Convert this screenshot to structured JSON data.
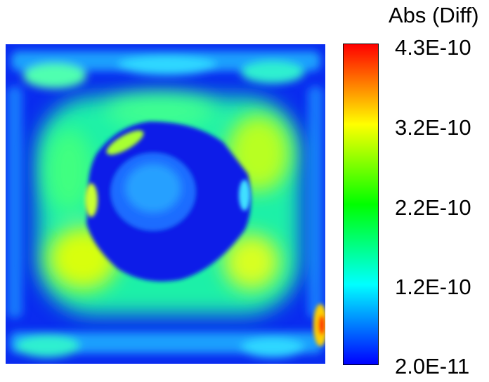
{
  "chart_data": {
    "type": "heatmap",
    "title": "",
    "colorbar": {
      "label": "Abs (Diff)",
      "ticks": [
        "4.3E-10",
        "3.2E-10",
        "2.2E-10",
        "1.2E-10",
        "2.0E-11"
      ],
      "min": 2e-11,
      "max": 4.3e-10,
      "colormap": "rainbow",
      "colors": [
        "#0000ff",
        "#00ffff",
        "#00ff00",
        "#ffff00",
        "#ff0000"
      ]
    },
    "description_values": {
      "outer_square_ring": "low (blue)",
      "inner_ring_around_circle": "medium (green-cyan)",
      "circle_interior": "low-to-medium (blue)",
      "hot_spots_lower_left_and_lower_right_of_circle": 3.2e-10,
      "hot_spot_right_edge": 4.3e-10
    }
  }
}
